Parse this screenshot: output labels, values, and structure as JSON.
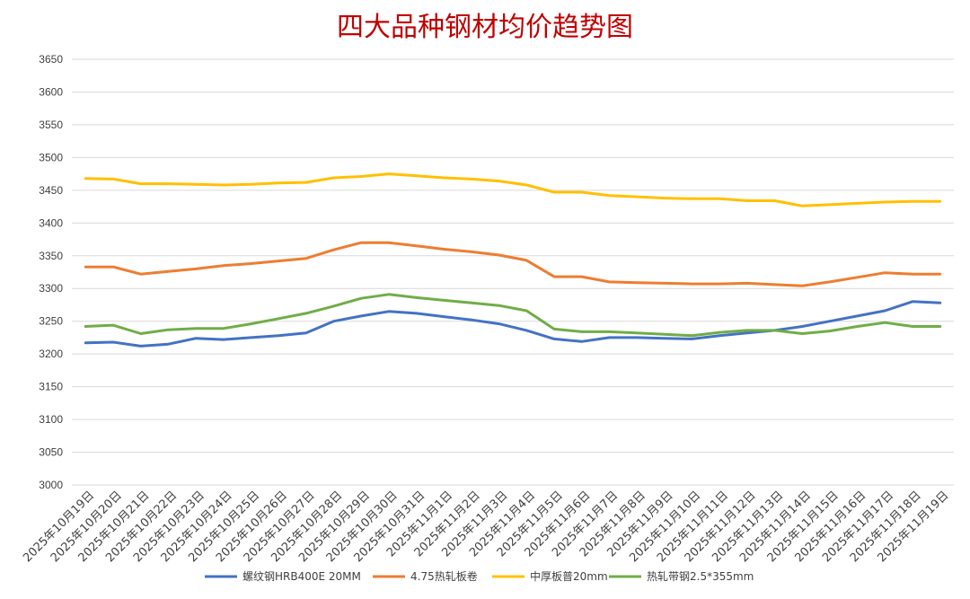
{
  "chart_data": {
    "type": "line",
    "title": "四大品种钢材均价趋势图",
    "ylim": [
      3000,
      3650
    ],
    "y_ticks": [
      3000,
      3050,
      3100,
      3150,
      3200,
      3250,
      3300,
      3350,
      3400,
      3450,
      3500,
      3550,
      3600,
      3650
    ],
    "grid": "horizontal",
    "legend_position": "bottom",
    "categories": [
      "2025年10月19日",
      "2025年10月20日",
      "2025年10月21日",
      "2025年10月22日",
      "2025年10月23日",
      "2025年10月24日",
      "2025年10月25日",
      "2025年10月26日",
      "2025年10月27日",
      "2025年10月28日",
      "2025年10月29日",
      "2025年10月30日",
      "2025年10月31日",
      "2025年11月1日",
      "2025年11月2日",
      "2025年11月3日",
      "2025年11月4日",
      "2025年11月5日",
      "2025年11月6日",
      "2025年11月7日",
      "2025年11月8日",
      "2025年11月9日",
      "2025年11月10日",
      "2025年11月11日",
      "2025年11月12日",
      "2025年11月13日",
      "2025年11月14日",
      "2025年11月15日",
      "2025年11月16日",
      "2025年11月17日",
      "2025年11月18日",
      "2025年11月19日"
    ],
    "series": [
      {
        "name": "螺纹钢HRB400E 20MM",
        "color": "#4472c4",
        "values": [
          3217,
          3218,
          3212,
          3215,
          3224,
          3222,
          3225,
          3228,
          3232,
          3250,
          3258,
          3265,
          3262,
          3257,
          3252,
          3246,
          3236,
          3223,
          3219,
          3225,
          3225,
          3224,
          3223,
          3228,
          3232,
          3236,
          3242,
          3250,
          3258,
          3266,
          3280,
          3278
        ]
      },
      {
        "name": "4.75热轧板卷",
        "color": "#ed7d31",
        "values": [
          3333,
          3333,
          3322,
          3326,
          3330,
          3335,
          3338,
          3342,
          3346,
          3359,
          3370,
          3370,
          3365,
          3360,
          3356,
          3351,
          3343,
          3318,
          3318,
          3310,
          3309,
          3308,
          3307,
          3307,
          3308,
          3306,
          3304,
          3310,
          3317,
          3324,
          3322,
          3322
        ]
      },
      {
        "name": "中厚板普20mm",
        "color": "#ffc000",
        "values": [
          3468,
          3467,
          3460,
          3460,
          3459,
          3458,
          3459,
          3461,
          3462,
          3469,
          3471,
          3475,
          3472,
          3469,
          3467,
          3464,
          3458,
          3447,
          3447,
          3442,
          3440,
          3438,
          3437,
          3437,
          3434,
          3434,
          3426,
          3428,
          3430,
          3432,
          3433,
          3433
        ]
      },
      {
        "name": "热轧带钢2.5*355mm",
        "color": "#70ad47",
        "values": [
          3242,
          3244,
          3231,
          3237,
          3239,
          3239,
          3246,
          3254,
          3262,
          3273,
          3285,
          3291,
          3286,
          3282,
          3278,
          3274,
          3266,
          3238,
          3234,
          3234,
          3232,
          3230,
          3228,
          3233,
          3236,
          3236,
          3231,
          3235,
          3242,
          3248,
          3242,
          3242
        ]
      }
    ]
  }
}
